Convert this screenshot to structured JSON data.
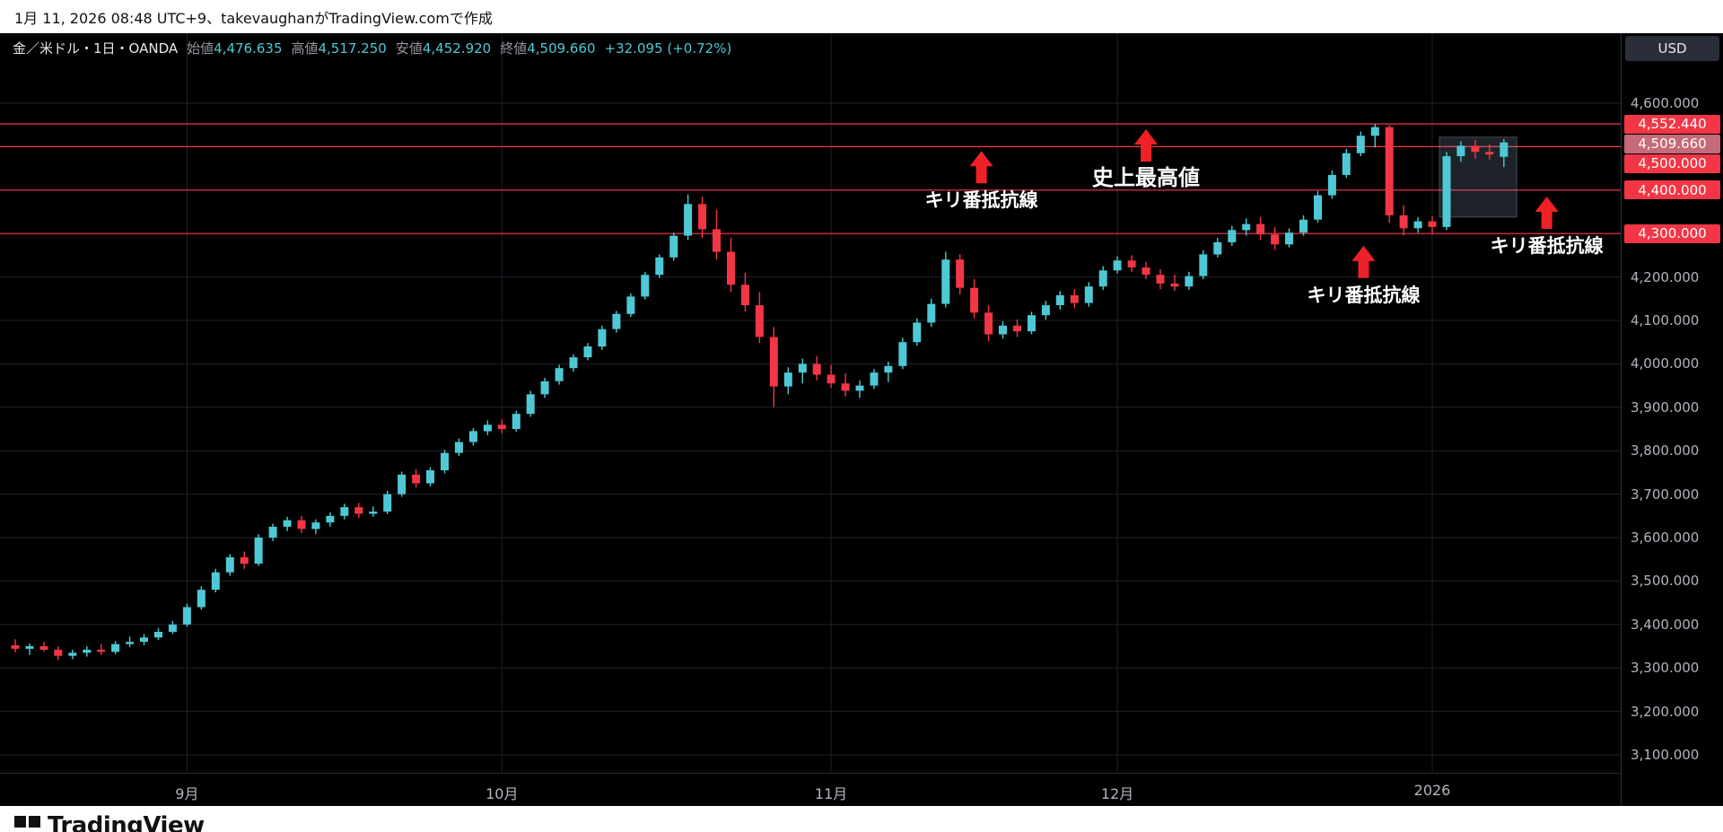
{
  "topbar": {
    "text": "1月 11, 2026 08:48 UTC+9、takevaughanがTradingView.comで作成"
  },
  "symbol_bar": {
    "title": "金／米ドル・1日・OANDA",
    "fields": [
      {
        "label": "始値",
        "value": "4,476.635"
      },
      {
        "label": "高値",
        "value": "4,517.250"
      },
      {
        "label": "安値",
        "value": "4,452.920"
      },
      {
        "label": "終値",
        "value": "4,509.660"
      }
    ],
    "change": "+32.095 (+0.72%)"
  },
  "price_axis": {
    "currency": "USD",
    "level_badge_color": "#f23645",
    "current_badge_color": "#c56a78",
    "gray_labels": [
      {
        "text": "4,600.000",
        "price": 4600
      },
      {
        "text": "4,200.000",
        "price": 4200
      },
      {
        "text": "4,100.000",
        "price": 4100
      },
      {
        "text": "4,000.000",
        "price": 4000
      },
      {
        "text": "3,900.000",
        "price": 3900
      },
      {
        "text": "3,800.000",
        "price": 3800
      },
      {
        "text": "3,700.000",
        "price": 3700
      },
      {
        "text": "3,600.000",
        "price": 3600
      },
      {
        "text": "3,500.000",
        "price": 3500
      },
      {
        "text": "3,400.000",
        "price": 3400
      },
      {
        "text": "3,300.000",
        "price": 3300
      },
      {
        "text": "3,200.000",
        "price": 3200
      },
      {
        "text": "3,100.000",
        "price": 3100
      }
    ],
    "level_badges": [
      {
        "text": "4,552.440",
        "price": 4552.44,
        "type": "level"
      },
      {
        "text": "4,509.660",
        "price": 4509.66,
        "type": "current"
      },
      {
        "text": "4,500.000",
        "price": 4500,
        "type": "level"
      },
      {
        "text": "4,400.000",
        "price": 4400,
        "type": "level"
      },
      {
        "text": "4,300.000",
        "price": 4300,
        "type": "level"
      }
    ]
  },
  "time_axis": {
    "ticks": [
      {
        "index": 12,
        "label": "9月"
      },
      {
        "index": 34,
        "label": "10月"
      },
      {
        "index": 57,
        "label": "11月"
      },
      {
        "index": 77,
        "label": "12月"
      },
      {
        "index": 99,
        "label": "2026"
      }
    ]
  },
  "chart_data": {
    "type": "candlestick",
    "title": "金／米ドル 1日 OANDA",
    "ylabel": "USD",
    "ylim": [
      3100,
      4600
    ],
    "grid_prices": [
      3100,
      3200,
      3300,
      3400,
      3500,
      3600,
      3700,
      3800,
      3900,
      4000,
      4100,
      4200,
      4300,
      4400,
      4500,
      4600
    ],
    "h_levels": [
      4552.44,
      4500,
      4400,
      4300
    ],
    "level_line_color": "#f23645",
    "up_color": "#4ec9d4",
    "down_color": "#f23645",
    "arrow_color": "#ee2226",
    "last_bar": {
      "open": 4476.635,
      "high": 4517.25,
      "low": 4452.92,
      "close": 4509.66,
      "change": 32.095,
      "change_pct": 0.72
    },
    "candles": [
      [
        3352,
        3366,
        3336,
        3344
      ],
      [
        3344,
        3356,
        3330,
        3350
      ],
      [
        3350,
        3360,
        3338,
        3342
      ],
      [
        3342,
        3350,
        3318,
        3328
      ],
      [
        3328,
        3342,
        3320,
        3335
      ],
      [
        3335,
        3350,
        3326,
        3342
      ],
      [
        3342,
        3355,
        3330,
        3337
      ],
      [
        3337,
        3362,
        3332,
        3355
      ],
      [
        3355,
        3372,
        3348,
        3360
      ],
      [
        3360,
        3378,
        3352,
        3370
      ],
      [
        3370,
        3392,
        3364,
        3383
      ],
      [
        3383,
        3408,
        3378,
        3400
      ],
      [
        3400,
        3448,
        3395,
        3440
      ],
      [
        3440,
        3488,
        3434,
        3480
      ],
      [
        3480,
        3528,
        3474,
        3520
      ],
      [
        3520,
        3562,
        3512,
        3555
      ],
      [
        3555,
        3568,
        3528,
        3540
      ],
      [
        3540,
        3608,
        3535,
        3600
      ],
      [
        3600,
        3632,
        3592,
        3625
      ],
      [
        3625,
        3648,
        3615,
        3640
      ],
      [
        3640,
        3650,
        3610,
        3620
      ],
      [
        3620,
        3642,
        3608,
        3635
      ],
      [
        3635,
        3658,
        3625,
        3650
      ],
      [
        3650,
        3678,
        3642,
        3670
      ],
      [
        3670,
        3680,
        3645,
        3655
      ],
      [
        3655,
        3672,
        3648,
        3660
      ],
      [
        3660,
        3708,
        3654,
        3700
      ],
      [
        3700,
        3752,
        3694,
        3745
      ],
      [
        3745,
        3758,
        3715,
        3725
      ],
      [
        3725,
        3762,
        3718,
        3755
      ],
      [
        3755,
        3802,
        3748,
        3795
      ],
      [
        3795,
        3828,
        3788,
        3820
      ],
      [
        3820,
        3852,
        3812,
        3845
      ],
      [
        3845,
        3870,
        3836,
        3860
      ],
      [
        3860,
        3872,
        3840,
        3850
      ],
      [
        3850,
        3892,
        3844,
        3885
      ],
      [
        3885,
        3938,
        3878,
        3930
      ],
      [
        3930,
        3968,
        3922,
        3960
      ],
      [
        3960,
        3998,
        3952,
        3990
      ],
      [
        3990,
        4022,
        3982,
        4015
      ],
      [
        4015,
        4048,
        4008,
        4040
      ],
      [
        4040,
        4088,
        4032,
        4080
      ],
      [
        4080,
        4122,
        4072,
        4115
      ],
      [
        4115,
        4162,
        4108,
        4155
      ],
      [
        4155,
        4212,
        4148,
        4205
      ],
      [
        4205,
        4252,
        4198,
        4245
      ],
      [
        4245,
        4302,
        4238,
        4295
      ],
      [
        4295,
        4390,
        4285,
        4368
      ],
      [
        4368,
        4385,
        4290,
        4310
      ],
      [
        4310,
        4355,
        4240,
        4258
      ],
      [
        4258,
        4290,
        4165,
        4182
      ],
      [
        4182,
        4210,
        4120,
        4135
      ],
      [
        4135,
        4165,
        4048,
        4062
      ],
      [
        4062,
        4085,
        3900,
        3948
      ],
      [
        3948,
        3992,
        3930,
        3980
      ],
      [
        3980,
        4012,
        3955,
        4000
      ],
      [
        4000,
        4018,
        3962,
        3975
      ],
      [
        3975,
        3998,
        3945,
        3955
      ],
      [
        3955,
        3978,
        3925,
        3938
      ],
      [
        3938,
        3962,
        3922,
        3950
      ],
      [
        3950,
        3988,
        3942,
        3980
      ],
      [
        3980,
        4005,
        3958,
        3995
      ],
      [
        3995,
        4060,
        3988,
        4050
      ],
      [
        4050,
        4105,
        4042,
        4095
      ],
      [
        4095,
        4150,
        4085,
        4138
      ],
      [
        4138,
        4258,
        4130,
        4240
      ],
      [
        4240,
        4252,
        4160,
        4175
      ],
      [
        4175,
        4195,
        4105,
        4118
      ],
      [
        4118,
        4135,
        4052,
        4068
      ],
      [
        4068,
        4098,
        4058,
        4088
      ],
      [
        4088,
        4102,
        4062,
        4075
      ],
      [
        4075,
        4120,
        4068,
        4112
      ],
      [
        4112,
        4145,
        4102,
        4135
      ],
      [
        4135,
        4168,
        4125,
        4158
      ],
      [
        4158,
        4172,
        4128,
        4140
      ],
      [
        4140,
        4188,
        4132,
        4178
      ],
      [
        4178,
        4225,
        4170,
        4215
      ],
      [
        4215,
        4248,
        4208,
        4238
      ],
      [
        4238,
        4250,
        4212,
        4222
      ],
      [
        4222,
        4235,
        4195,
        4205
      ],
      [
        4205,
        4218,
        4172,
        4185
      ],
      [
        4185,
        4205,
        4168,
        4178
      ],
      [
        4178,
        4212,
        4170,
        4202
      ],
      [
        4202,
        4262,
        4195,
        4252
      ],
      [
        4252,
        4290,
        4245,
        4280
      ],
      [
        4280,
        4318,
        4272,
        4308
      ],
      [
        4308,
        4335,
        4295,
        4322
      ],
      [
        4322,
        4338,
        4285,
        4298
      ],
      [
        4298,
        4315,
        4262,
        4275
      ],
      [
        4275,
        4312,
        4268,
        4302
      ],
      [
        4302,
        4342,
        4295,
        4332
      ],
      [
        4332,
        4398,
        4325,
        4388
      ],
      [
        4388,
        4445,
        4380,
        4435
      ],
      [
        4435,
        4495,
        4428,
        4485
      ],
      [
        4485,
        4535,
        4478,
        4525
      ],
      [
        4525,
        4552,
        4498,
        4545
      ],
      [
        4545,
        4550,
        4325,
        4342
      ],
      [
        4342,
        4365,
        4295,
        4312
      ],
      [
        4312,
        4338,
        4302,
        4328
      ],
      [
        4328,
        4340,
        4298,
        4315
      ],
      [
        4315,
        4488,
        4308,
        4478
      ],
      [
        4478,
        4512,
        4465,
        4502
      ],
      [
        4502,
        4515,
        4472,
        4488
      ],
      [
        4488,
        4505,
        4470,
        4482
      ],
      [
        4476.6,
        4517.3,
        4452.9,
        4509.7
      ]
    ]
  },
  "annotations": [
    {
      "label": "キリ番抵抗線",
      "x_index": 67.5,
      "tip_price": 4490,
      "emphasis": false
    },
    {
      "label": "史上最高値",
      "x_index": 79,
      "tip_price": 4540,
      "emphasis": true
    },
    {
      "label": "キリ番抵抗線",
      "x_index": 94.2,
      "tip_price": 4272,
      "emphasis": false
    },
    {
      "label": "キリ番抵抗線",
      "x_index": 107,
      "tip_price": 4385,
      "emphasis": false
    }
  ],
  "selection_box": {
    "start_index": 99.5,
    "end_index": 104.9,
    "top_price": 4522,
    "bottom_price": 4338
  },
  "footer": {
    "brand": "TradingView"
  }
}
